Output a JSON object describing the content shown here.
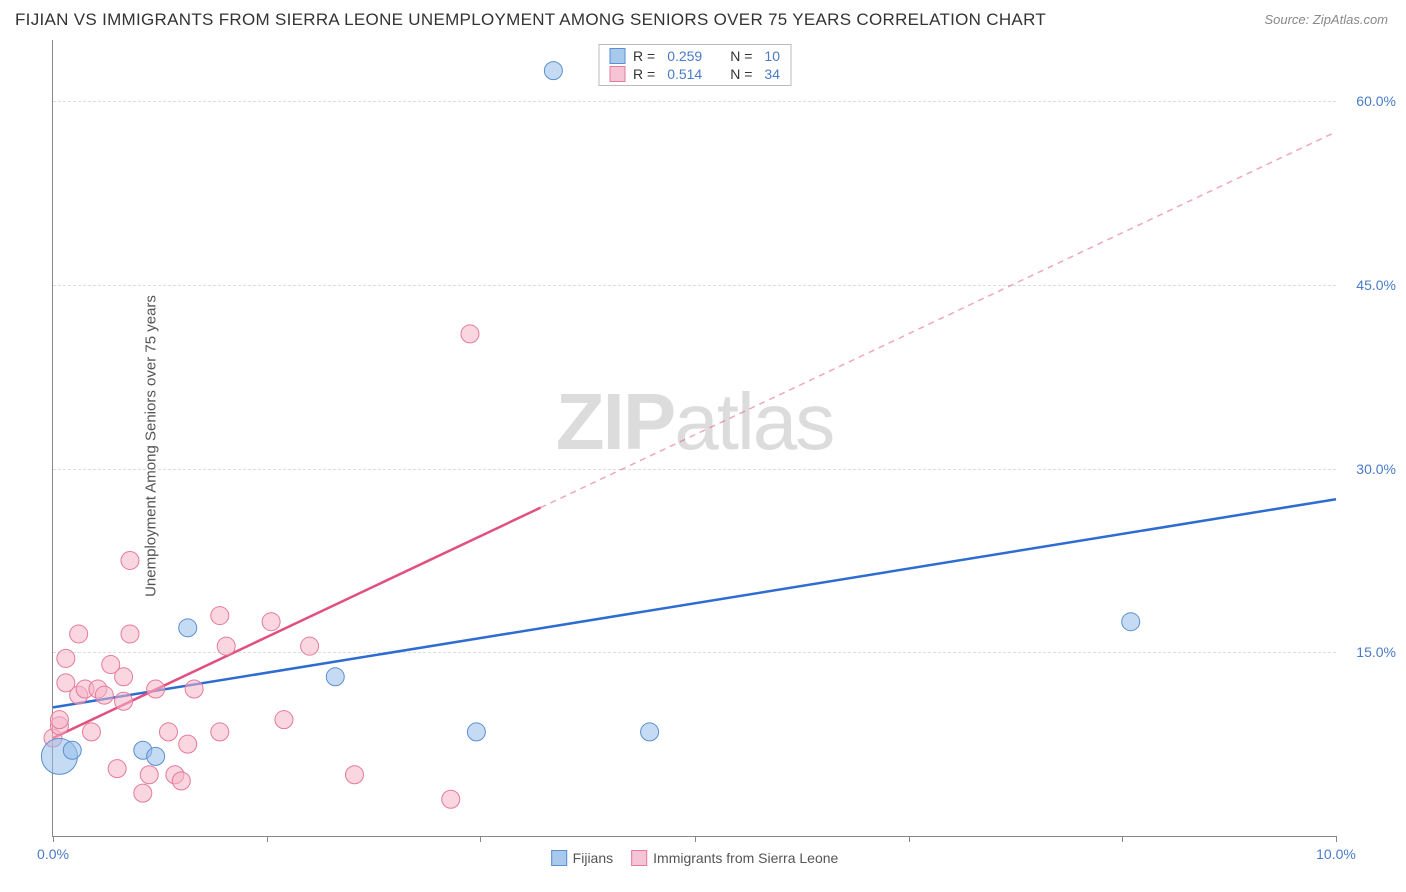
{
  "title": "FIJIAN VS IMMIGRANTS FROM SIERRA LEONE UNEMPLOYMENT AMONG SENIORS OVER 75 YEARS CORRELATION CHART",
  "source": "Source: ZipAtlas.com",
  "ylabel": "Unemployment Among Seniors over 75 years",
  "watermark_bold": "ZIP",
  "watermark_light": "atlas",
  "chart": {
    "type": "scatter",
    "background_color": "#ffffff",
    "grid_color": "#dddddd",
    "axis_color": "#888888",
    "xlim": [
      0,
      10
    ],
    "ylim": [
      0,
      65
    ],
    "xticks": [
      0,
      1.67,
      3.33,
      5.0,
      6.67,
      8.33,
      10
    ],
    "xtick_labels_shown": {
      "0": "0.0%",
      "10": "10.0%"
    },
    "yticks": [
      15,
      30,
      45,
      60
    ],
    "ytick_labels": [
      "15.0%",
      "30.0%",
      "45.0%",
      "60.0%"
    ],
    "tick_label_color": "#4a7bc8",
    "tick_label_fontsize": 14,
    "marker_radius": 9,
    "series": [
      {
        "name": "Fijians",
        "color_fill": "rgba(150,190,235,0.55)",
        "color_stroke": "#5a8fd0",
        "swatch_fill": "#a8c8ec",
        "swatch_stroke": "#5a8fd0",
        "R": "0.259",
        "N": "10",
        "trend": {
          "x1": 0,
          "y1": 10.5,
          "x2": 10,
          "y2": 27.5,
          "solid_end_x": 10,
          "color": "#2d6cd0",
          "width": 2.5
        },
        "points": [
          {
            "x": 0.05,
            "y": 6.5,
            "r": 18
          },
          {
            "x": 0.15,
            "y": 7.0
          },
          {
            "x": 0.7,
            "y": 7.0
          },
          {
            "x": 0.8,
            "y": 6.5
          },
          {
            "x": 1.05,
            "y": 17.0
          },
          {
            "x": 2.2,
            "y": 13.0
          },
          {
            "x": 3.3,
            "y": 8.5
          },
          {
            "x": 4.65,
            "y": 8.5
          },
          {
            "x": 8.4,
            "y": 17.5
          },
          {
            "x": 3.9,
            "y": 62.5
          }
        ]
      },
      {
        "name": "Immigrants from Sierra Leone",
        "color_fill": "rgba(245,180,200,0.55)",
        "color_stroke": "#e57a9a",
        "swatch_fill": "#f5c5d5",
        "swatch_stroke": "#e57a9a",
        "R": "0.514",
        "N": "34",
        "trend": {
          "x1": 0,
          "y1": 8.0,
          "x2": 10,
          "y2": 57.5,
          "solid_end_x": 3.8,
          "color": "#e05080",
          "width": 2.5
        },
        "points": [
          {
            "x": 0.0,
            "y": 8.0
          },
          {
            "x": 0.05,
            "y": 9.0
          },
          {
            "x": 0.05,
            "y": 9.5
          },
          {
            "x": 0.1,
            "y": 12.5
          },
          {
            "x": 0.1,
            "y": 14.5
          },
          {
            "x": 0.2,
            "y": 11.5
          },
          {
            "x": 0.2,
            "y": 16.5
          },
          {
            "x": 0.25,
            "y": 12.0
          },
          {
            "x": 0.3,
            "y": 8.5
          },
          {
            "x": 0.35,
            "y": 12.0
          },
          {
            "x": 0.4,
            "y": 11.5
          },
          {
            "x": 0.45,
            "y": 14.0
          },
          {
            "x": 0.5,
            "y": 5.5
          },
          {
            "x": 0.55,
            "y": 11.0
          },
          {
            "x": 0.55,
            "y": 13.0
          },
          {
            "x": 0.6,
            "y": 16.5
          },
          {
            "x": 0.6,
            "y": 22.5
          },
          {
            "x": 0.7,
            "y": 3.5
          },
          {
            "x": 0.75,
            "y": 5.0
          },
          {
            "x": 0.8,
            "y": 12.0
          },
          {
            "x": 0.9,
            "y": 8.5
          },
          {
            "x": 0.95,
            "y": 5.0
          },
          {
            "x": 1.0,
            "y": 4.5
          },
          {
            "x": 1.05,
            "y": 7.5
          },
          {
            "x": 1.1,
            "y": 12.0
          },
          {
            "x": 1.3,
            "y": 8.5
          },
          {
            "x": 1.3,
            "y": 18.0
          },
          {
            "x": 1.35,
            "y": 15.5
          },
          {
            "x": 1.7,
            "y": 17.5
          },
          {
            "x": 1.8,
            "y": 9.5
          },
          {
            "x": 2.0,
            "y": 15.5
          },
          {
            "x": 2.35,
            "y": 5.0
          },
          {
            "x": 3.1,
            "y": 3.0
          },
          {
            "x": 3.25,
            "y": 41.0
          }
        ]
      }
    ]
  },
  "legend_top": {
    "R_label": "R =",
    "N_label": "N ="
  },
  "legend_bottom": [
    {
      "label": "Fijians",
      "fill": "#a8c8ec",
      "stroke": "#5a8fd0"
    },
    {
      "label": "Immigrants from Sierra Leone",
      "fill": "#f5c5d5",
      "stroke": "#e57a9a"
    }
  ]
}
